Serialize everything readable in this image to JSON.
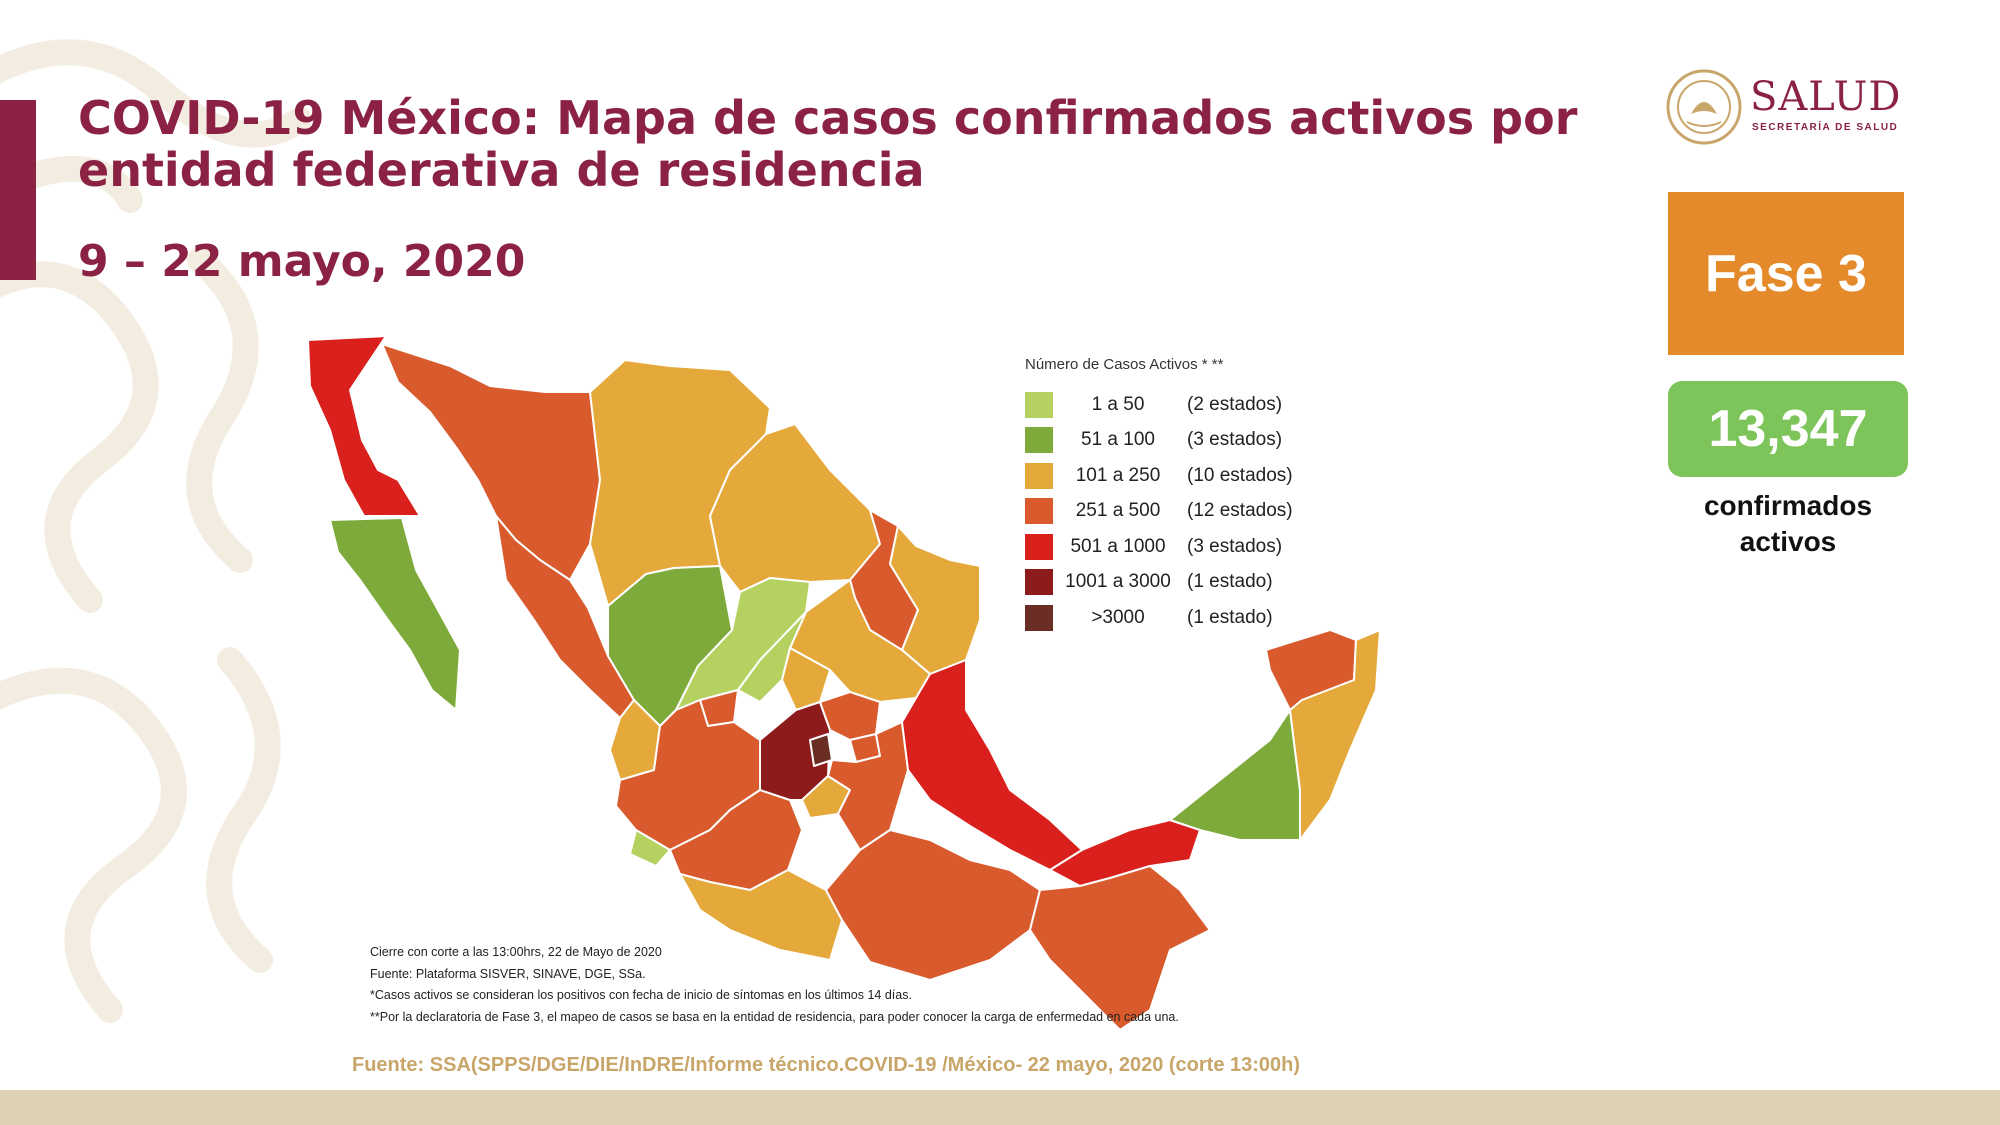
{
  "header": {
    "title": "COVID-19 México: Mapa de casos confirmados activos por entidad federativa de residencia",
    "date_range": "9 – 22 mayo, 2020"
  },
  "logo": {
    "name": "SALUD",
    "subtitle": "SECRETARÍA DE SALUD"
  },
  "phase": {
    "label": "Fase 3"
  },
  "active_cases": {
    "count": "13,347",
    "label": "confirmados activos"
  },
  "legend": {
    "title": "Número de Casos Activos * **",
    "items": [
      {
        "range": "1 a 50",
        "count": "(2 estados)",
        "color": "#b5d160"
      },
      {
        "range": "51 a 100",
        "count": "(3 estados)",
        "color": "#7daa3a"
      },
      {
        "range": "101 a 250",
        "count": "(10 estados)",
        "color": "#e5a93b"
      },
      {
        "range": "251 a 500",
        "count": "(12 estados)",
        "color": "#d95b2d"
      },
      {
        "range": "501 a 1000",
        "count": "(3 estados)",
        "color": "#d9201c"
      },
      {
        "range": "1001 a 3000",
        "count": "(1 estado)",
        "color": "#8e1b1b"
      },
      {
        "range": ">3000",
        "count": "(1 estado)",
        "color": "#6b2e24"
      }
    ]
  },
  "notes": [
    "Cierre con corte a las 13:00hrs, 22 de Mayo de 2020",
    "Fuente: Plataforma SISVER, SINAVE, DGE, SSa.",
    "*Casos activos se consideran los positivos con fecha de inicio de síntomas en los últimos 14 días.",
    "**Por la declaratoria de Fase 3, el mapeo de casos se basa en la entidad de residencia, para poder conocer la carga de enfermedad en cada una."
  ],
  "footer": {
    "source": "Fuente: SSA(SPPS/DGE/DIE/InDRE/Informe técnico.COVID-19 /México- 22 mayo, 2020 (corte 13:00h)"
  }
}
